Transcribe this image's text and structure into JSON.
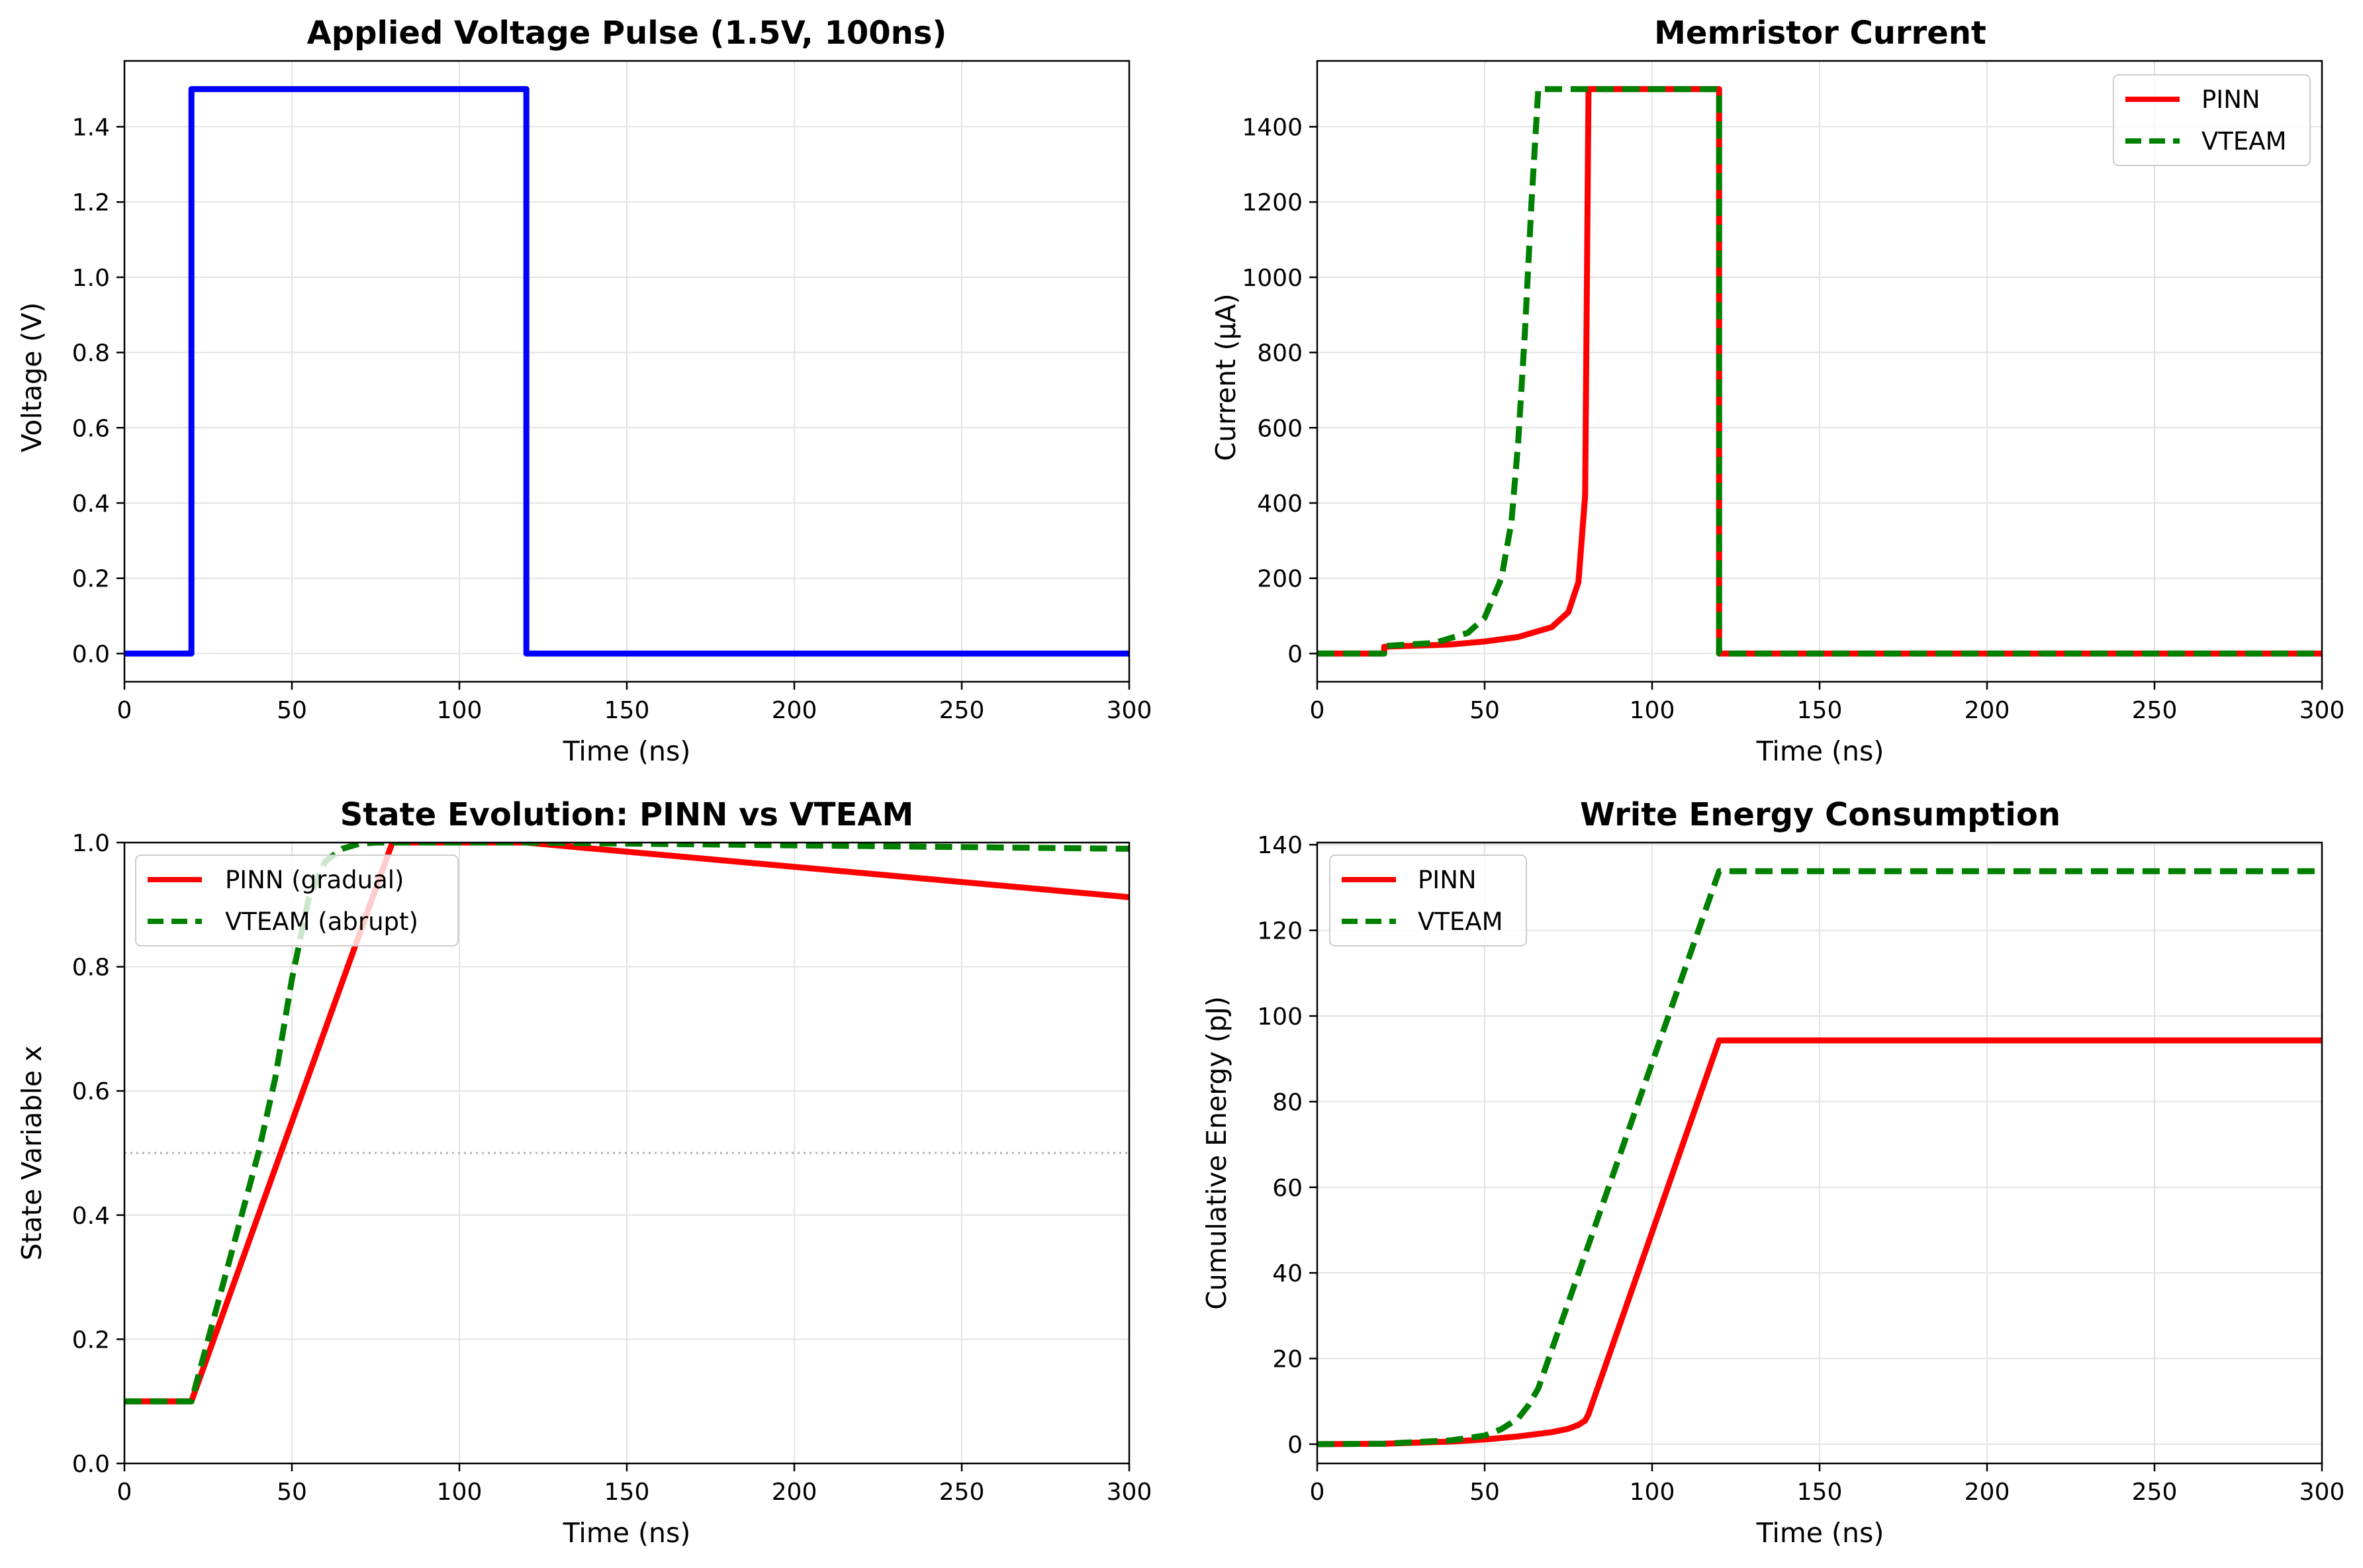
{
  "colors": {
    "blue": "#0000ff",
    "red": "#ff0000",
    "green": "#008000",
    "grid": "#e3e3e3",
    "ref": "#b0b0b0"
  },
  "chart_data": [
    {
      "type": "line",
      "title": "Applied Voltage Pulse (1.5V, 100ns)",
      "xlabel": "Time (ns)",
      "ylabel": "Voltage (V)",
      "xlim": [
        0,
        300
      ],
      "ylim": [
        -0.075,
        1.575
      ],
      "xticks": [
        0,
        50,
        100,
        150,
        200,
        250,
        300
      ],
      "xtick_labels": [
        "0",
        "50",
        "100",
        "150",
        "200",
        "250",
        "300"
      ],
      "yticks": [
        0,
        0.2,
        0.4,
        0.6,
        0.8,
        1.0,
        1.2,
        1.4
      ],
      "ytick_labels": [
        "0.0",
        "0.2",
        "0.4",
        "0.6",
        "0.8",
        "1.0",
        "1.2",
        "1.4"
      ],
      "grid": true,
      "series": [
        {
          "color": "#0000ff",
          "dash": "solid",
          "x": [
            0,
            20,
            20,
            120,
            120,
            300
          ],
          "y": [
            0,
            0,
            1.5,
            1.5,
            0,
            0
          ]
        }
      ]
    },
    {
      "type": "line",
      "title": "Memristor Current",
      "xlabel": "Time (ns)",
      "ylabel": "Current (µA)",
      "xlim": [
        0,
        300
      ],
      "ylim": [
        -75,
        1575
      ],
      "xticks": [
        0,
        50,
        100,
        150,
        200,
        250,
        300
      ],
      "xtick_labels": [
        "0",
        "50",
        "100",
        "150",
        "200",
        "250",
        "300"
      ],
      "yticks": [
        0,
        200,
        400,
        600,
        800,
        1000,
        1200,
        1400
      ],
      "ytick_labels": [
        "0",
        "200",
        "400",
        "600",
        "800",
        "1000",
        "1200",
        "1400"
      ],
      "grid": true,
      "legend_position": "upper right",
      "series": [
        {
          "name": "PINN",
          "color": "#ff0000",
          "dash": "solid",
          "x": [
            0,
            20,
            20,
            40,
            50,
            60,
            70,
            75,
            78,
            80,
            81,
            81,
            120,
            120,
            300
          ],
          "y": [
            0,
            0,
            18,
            24,
            32,
            44,
            70,
            110,
            190,
            420,
            1500,
            1500,
            1500,
            0,
            0
          ]
        },
        {
          "name": "VTEAM",
          "color": "#008000",
          "dash": "dashed",
          "x": [
            0,
            20,
            20,
            35,
            45,
            50,
            55,
            58,
            60,
            62,
            64,
            66,
            66,
            120,
            120,
            300
          ],
          "y": [
            0,
            0,
            20,
            28,
            55,
            95,
            200,
            350,
            560,
            850,
            1200,
            1500,
            1500,
            1500,
            0,
            0
          ]
        }
      ]
    },
    {
      "type": "line",
      "title": "State Evolution: PINN vs VTEAM",
      "xlabel": "Time (ns)",
      "ylabel": "State Variable x",
      "xlim": [
        0,
        300
      ],
      "ylim": [
        0,
        1
      ],
      "xticks": [
        0,
        50,
        100,
        150,
        200,
        250,
        300
      ],
      "xtick_labels": [
        "0",
        "50",
        "100",
        "150",
        "200",
        "250",
        "300"
      ],
      "yticks": [
        0,
        0.2,
        0.4,
        0.6,
        0.8,
        1.0
      ],
      "ytick_labels": [
        "0.0",
        "0.2",
        "0.4",
        "0.6",
        "0.8",
        "1.0"
      ],
      "grid": true,
      "legend_position": "upper left",
      "reference_line": {
        "y": 0.5,
        "color": "#b0b0b0",
        "style": "dotted"
      },
      "series": [
        {
          "name": "PINN (gradual)",
          "color": "#ff0000",
          "dash": "solid",
          "x": [
            0,
            20,
            80,
            120,
            300
          ],
          "y": [
            0.1,
            0.1,
            1.0,
            1.0,
            0.912
          ]
        },
        {
          "name": "VTEAM (abrupt)",
          "color": "#008000",
          "dash": "dashed",
          "x": [
            0,
            20,
            30,
            40,
            45,
            50,
            55,
            60,
            65,
            70,
            75,
            120,
            300
          ],
          "y": [
            0.1,
            0.1,
            0.3,
            0.5,
            0.62,
            0.78,
            0.91,
            0.97,
            0.99,
            0.998,
            1.0,
            1.0,
            0.99
          ]
        }
      ]
    },
    {
      "type": "line",
      "title": "Write Energy Consumption",
      "xlabel": "Time (ns)",
      "ylabel": "Cumulative Energy (pJ)",
      "xlim": [
        0,
        300
      ],
      "ylim": [
        -4.5,
        140.5
      ],
      "xticks": [
        0,
        50,
        100,
        150,
        200,
        250,
        300
      ],
      "xtick_labels": [
        "0",
        "50",
        "100",
        "150",
        "200",
        "250",
        "300"
      ],
      "yticks": [
        0,
        20,
        40,
        60,
        80,
        100,
        120,
        140
      ],
      "ytick_labels": [
        "0",
        "20",
        "40",
        "60",
        "80",
        "100",
        "120",
        "140"
      ],
      "grid": true,
      "legend_position": "upper left",
      "series": [
        {
          "name": "PINN",
          "color": "#ff0000",
          "dash": "solid",
          "x": [
            0,
            20,
            40,
            50,
            60,
            70,
            75,
            78,
            80,
            81,
            120,
            300
          ],
          "y": [
            0,
            0.1,
            0.6,
            1.1,
            1.8,
            2.8,
            3.6,
            4.5,
            5.5,
            7.0,
            94.3,
            94.3
          ]
        },
        {
          "name": "VTEAM",
          "color": "#008000",
          "dash": "dashed",
          "x": [
            0,
            20,
            40,
            50,
            55,
            60,
            63,
            66,
            120,
            300
          ],
          "y": [
            0,
            0.1,
            0.9,
            2.0,
            3.5,
            6.0,
            9.0,
            13.0,
            133.8,
            133.8
          ]
        }
      ]
    }
  ]
}
